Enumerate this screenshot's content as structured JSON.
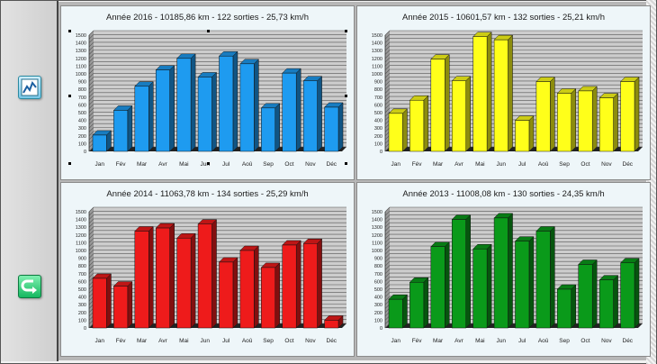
{
  "colors": {
    "red": "#ee1b1b",
    "yellow": "#ffff1a",
    "blue": "#1e9bf0",
    "green": "#0a9a1a"
  },
  "sidebar": {
    "chart_button_icon": "line-chart-icon",
    "back_button_icon": "return-arrow-icon"
  },
  "chart_data": [
    {
      "type": "bar",
      "title": "Année 2016 - 10185,86 km - 122 sorties - 25,73 km/h",
      "categories": [
        "Jan",
        "Fév",
        "Mar",
        "Avr",
        "Mai",
        "Jun",
        "Jul",
        "Aoû",
        "Sep",
        "Oct",
        "Nov",
        "Déc"
      ],
      "values": [
        210,
        530,
        840,
        1050,
        1200,
        960,
        1230,
        1130,
        560,
        1010,
        910,
        570
      ],
      "color": "#1e9bf0",
      "ylim": [
        0,
        1500
      ],
      "yticks": [
        "0",
        "50",
        "100",
        "150",
        "200",
        "250",
        "300",
        "350",
        "400",
        "450",
        "500",
        "550",
        "600",
        "650",
        "700",
        "750",
        "800",
        "850",
        "900",
        "950",
        "1000",
        "1050",
        "1100",
        "1150",
        "1200",
        "1250",
        "1300",
        "1350",
        "1400",
        "1450",
        "1500"
      ],
      "xlabel": "",
      "ylabel": "",
      "grid": true
    },
    {
      "type": "bar",
      "title": "Année 2015 - 10601,57 km - 132 sorties - 25,21 km/h",
      "categories": [
        "Jan",
        "Fév",
        "Mar",
        "Avr",
        "Mai",
        "Jun",
        "Jul",
        "Aoû",
        "Sep",
        "Oct",
        "Nov",
        "Déc"
      ],
      "values": [
        490,
        660,
        1190,
        910,
        1480,
        1440,
        400,
        900,
        750,
        780,
        690,
        900
      ],
      "color": "#ffff1a",
      "ylim": [
        0,
        1500
      ],
      "yticks": [
        "0",
        "50",
        "100",
        "150",
        "200",
        "250",
        "300",
        "350",
        "400",
        "450",
        "500",
        "550",
        "600",
        "650",
        "700",
        "750",
        "800",
        "850",
        "900",
        "950",
        "1000",
        "1050",
        "1100",
        "1150",
        "1200",
        "1250",
        "1300",
        "1350",
        "1400",
        "1450",
        "1500"
      ],
      "xlabel": "",
      "ylabel": "",
      "grid": true
    },
    {
      "type": "bar",
      "title": "Année 2014 - 11063,78 km - 134 sorties - 25,29 km/h",
      "categories": [
        "Jan",
        "Fév",
        "Mar",
        "Avr",
        "Mai",
        "Jun",
        "Jul",
        "Aoû",
        "Sep",
        "Oct",
        "Nov",
        "Déc"
      ],
      "values": [
        640,
        540,
        1250,
        1290,
        1160,
        1340,
        850,
        1000,
        780,
        1070,
        1090,
        100
      ],
      "color": "#ee1b1b",
      "ylim": [
        0,
        1500
      ],
      "yticks": [
        "0",
        "50",
        "100",
        "150",
        "200",
        "250",
        "300",
        "350",
        "400",
        "450",
        "500",
        "550",
        "600",
        "650",
        "700",
        "750",
        "800",
        "850",
        "900",
        "950",
        "1000",
        "1050",
        "1100",
        "1150",
        "1200",
        "1250",
        "1300",
        "1350",
        "1400",
        "1450",
        "1500"
      ],
      "xlabel": "",
      "ylabel": "",
      "grid": true
    },
    {
      "type": "bar",
      "title": "Année 2013 - 11008,08 km - 130 sorties - 24,35 km/h",
      "categories": [
        "Jan",
        "Fév",
        "Mar",
        "Avr",
        "Mai",
        "Jun",
        "Jul",
        "Aoû",
        "Sep",
        "Oct",
        "Nov",
        "Déc"
      ],
      "values": [
        370,
        590,
        1050,
        1400,
        1020,
        1420,
        1120,
        1250,
        500,
        820,
        620,
        840
      ],
      "color": "#0a9a1a",
      "ylim": [
        0,
        1500
      ],
      "yticks": [
        "0",
        "50",
        "100",
        "150",
        "200",
        "250",
        "300",
        "350",
        "400",
        "450",
        "500",
        "550",
        "600",
        "650",
        "700",
        "750",
        "800",
        "850",
        "900",
        "950",
        "1000",
        "1050",
        "1100",
        "1150",
        "1200",
        "1250",
        "1300",
        "1350",
        "1400",
        "1450",
        "1500"
      ],
      "xlabel": "",
      "ylabel": "",
      "grid": true
    }
  ]
}
